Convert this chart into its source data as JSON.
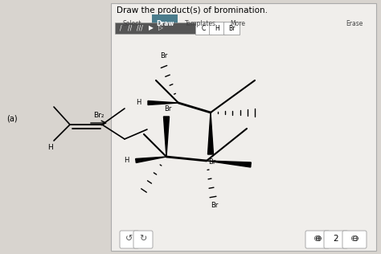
{
  "bg_color": "#d8d4cf",
  "panel_bg": "#f0eeeb",
  "title": "Draw the product(s) of bromination.",
  "title_fontsize": 7.5,
  "tabs": [
    "Select",
    "Draw",
    "Templates",
    "More",
    "Erase"
  ],
  "active_tab": "Draw",
  "active_tab_color": "#4a7c8c",
  "element_buttons": [
    "C",
    "H",
    "Br"
  ],
  "label_a": "(a)",
  "br2_label": "Br₂"
}
